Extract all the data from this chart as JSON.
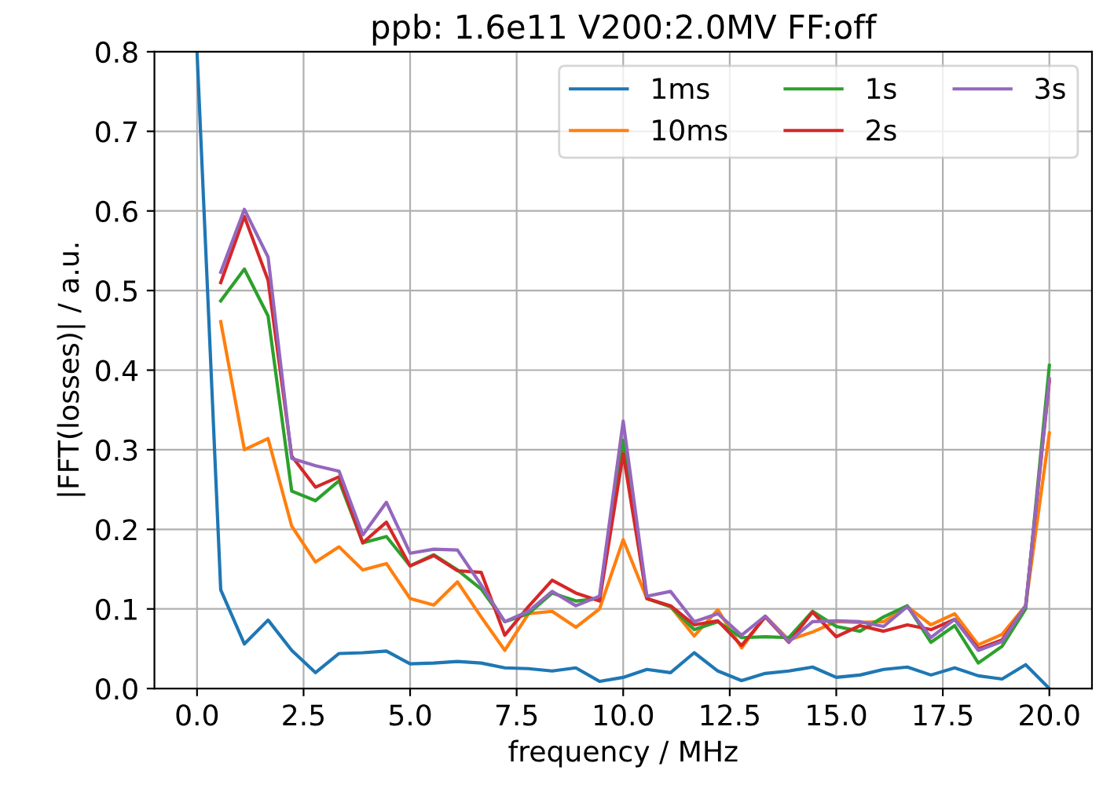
{
  "chart_data": {
    "type": "line",
    "title": "ppb: 1.6e11 V200:2.0MV FF:off",
    "xlabel": "frequency / MHz",
    "ylabel": "|FFT(losses)| / a.u.",
    "x": [
      0,
      0.556,
      1.111,
      1.667,
      2.222,
      2.778,
      3.333,
      3.889,
      4.444,
      5.0,
      5.556,
      6.111,
      6.667,
      7.222,
      7.778,
      8.333,
      8.889,
      9.444,
      10.0,
      10.556,
      11.111,
      11.667,
      12.222,
      12.778,
      13.333,
      13.889,
      14.444,
      15.0,
      15.556,
      16.111,
      16.667,
      17.222,
      17.778,
      18.333,
      18.889,
      19.444,
      20.0
    ],
    "series": [
      {
        "name": "1ms",
        "color": "#1f77b4",
        "values": [
          0.8,
          0.124,
          0.056,
          0.086,
          0.048,
          0.02,
          0.044,
          0.045,
          0.047,
          0.031,
          0.032,
          0.034,
          0.032,
          0.026,
          0.025,
          0.022,
          0.026,
          0.009,
          0.014,
          0.024,
          0.02,
          0.045,
          0.022,
          0.01,
          0.019,
          0.022,
          0.027,
          0.014,
          0.017,
          0.024,
          0.027,
          0.017,
          0.026,
          0.016,
          0.012,
          0.03,
          0.0
        ]
      },
      {
        "name": "10ms",
        "color": "#ff7f0e",
        "values": [
          null,
          0.461,
          0.3,
          0.314,
          0.204,
          0.159,
          0.178,
          0.149,
          0.157,
          0.113,
          0.105,
          0.134,
          0.09,
          0.048,
          0.094,
          0.097,
          0.077,
          0.1,
          0.187,
          0.113,
          0.103,
          0.066,
          0.099,
          0.051,
          0.091,
          0.061,
          0.071,
          0.084,
          0.083,
          0.084,
          0.103,
          0.08,
          0.094,
          0.055,
          0.068,
          0.104,
          0.321
        ]
      },
      {
        "name": "1s",
        "color": "#2ca02c",
        "values": [
          null,
          0.487,
          0.527,
          0.468,
          0.248,
          0.236,
          0.261,
          0.183,
          0.191,
          0.154,
          0.168,
          0.149,
          0.125,
          0.084,
          0.094,
          0.12,
          0.11,
          0.113,
          0.312,
          0.113,
          0.103,
          0.074,
          0.084,
          0.064,
          0.065,
          0.064,
          0.097,
          0.078,
          0.072,
          0.09,
          0.104,
          0.058,
          0.079,
          0.032,
          0.053,
          0.1,
          0.406
        ]
      },
      {
        "name": "2s",
        "color": "#d62728",
        "values": [
          null,
          0.51,
          0.593,
          0.513,
          0.292,
          0.253,
          0.266,
          0.183,
          0.209,
          0.154,
          0.167,
          0.148,
          0.146,
          0.067,
          0.103,
          0.136,
          0.12,
          0.11,
          0.295,
          0.113,
          0.104,
          0.08,
          0.085,
          0.054,
          0.09,
          0.058,
          0.096,
          0.065,
          0.079,
          0.072,
          0.08,
          0.074,
          0.087,
          0.05,
          0.061,
          0.104,
          0.386
        ]
      },
      {
        "name": "3s",
        "color": "#9467bd",
        "values": [
          null,
          0.523,
          0.602,
          0.542,
          0.289,
          0.28,
          0.273,
          0.193,
          0.234,
          0.17,
          0.175,
          0.174,
          0.13,
          0.084,
          0.097,
          0.122,
          0.104,
          0.116,
          0.336,
          0.116,
          0.122,
          0.084,
          0.094,
          0.067,
          0.091,
          0.059,
          0.084,
          0.085,
          0.084,
          0.078,
          0.103,
          0.064,
          0.087,
          0.048,
          0.059,
          0.104,
          0.389
        ]
      }
    ],
    "xlim": [
      -1,
      21
    ],
    "ylim": [
      0,
      0.8
    ],
    "xticks": [
      {
        "value": 0,
        "label": "0.0"
      },
      2.5,
      {
        "value": 5,
        "label": "5.0"
      },
      7.5,
      {
        "value": 10,
        "label": "10.0"
      },
      12.5,
      {
        "value": 15,
        "label": "15.0"
      },
      17.5,
      {
        "value": 20,
        "label": "20.0"
      }
    ],
    "yticks": [
      {
        "value": 0,
        "label": "0.0"
      },
      0.1,
      0.2,
      0.3,
      0.4,
      0.5,
      0.6,
      0.7,
      0.8
    ],
    "grid": true,
    "legend": "top right",
    "marker": "none",
    "line_style": "solid"
  }
}
